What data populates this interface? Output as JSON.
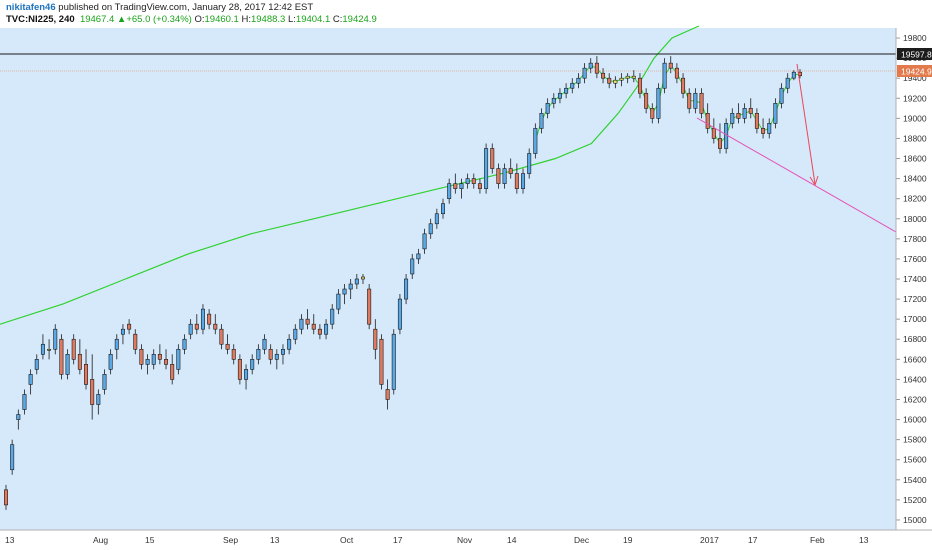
{
  "header": {
    "author": "nikitafen46",
    "published": "published on TradingView.com, January 28, 2017 12:42 EST",
    "symbol": "TVC:NI225, 240",
    "last": "19467.4",
    "change_arrow": "▲",
    "change": "+65.0 (+0.34%)",
    "open_label": "O:",
    "open": "19460.1",
    "high_label": "H:",
    "high": "19488.3",
    "low_label": "L:",
    "low": "19404.1",
    "close_label": "C:",
    "close": "19424.9"
  },
  "colors": {
    "plot_bg": "#d6e9fb",
    "candle_up_fill": "#5aa9e6",
    "candle_down_fill": "#e07a5f",
    "candle_doji": "#f3e26a",
    "ma_line": "#2ed12e",
    "pink_line": "#e54fb4",
    "red_arrow": "#e8475a",
    "current_price_label_bg": "#e37a4b",
    "high_line_label_bg": "#1c1c1c"
  },
  "chart_data": {
    "type": "candlestick",
    "title": "",
    "xlabel": "",
    "ylabel": "",
    "ylim": [
      14900,
      19900
    ],
    "y_ticks": [
      15000,
      15200,
      15400,
      15600,
      15800,
      16000,
      16200,
      16400,
      16600,
      16800,
      17000,
      17200,
      17400,
      17600,
      17800,
      18000,
      18200,
      18400,
      18600,
      18800,
      19000,
      19200,
      19400,
      19600,
      19800
    ],
    "x_tick_labels": [
      "13",
      "Aug",
      "15",
      "Sep",
      "13",
      "Oct",
      "17",
      "Nov",
      "14",
      "Dec",
      "19",
      "2017",
      "17",
      "Feb",
      "13"
    ],
    "price_labels": {
      "horizontal_line": "19597.8",
      "current": "19424.9"
    },
    "levels": {
      "horizontal_line": 19597.8,
      "current": 19424.9
    },
    "candles": [
      [
        15300,
        15350,
        15100,
        15150
      ],
      [
        15500,
        15800,
        15450,
        15750
      ],
      [
        16000,
        16100,
        15900,
        16050
      ],
      [
        16100,
        16300,
        16050,
        16250
      ],
      [
        16350,
        16500,
        16250,
        16450
      ],
      [
        16500,
        16650,
        16450,
        16600
      ],
      [
        16650,
        16850,
        16600,
        16750
      ],
      [
        16700,
        16800,
        16600,
        16700
      ],
      [
        16700,
        16950,
        16650,
        16900
      ],
      [
        16800,
        16850,
        16400,
        16450
      ],
      [
        16450,
        16700,
        16400,
        16650
      ],
      [
        16800,
        16850,
        16550,
        16600
      ],
      [
        16650,
        16800,
        16450,
        16500
      ],
      [
        16550,
        16700,
        16300,
        16350
      ],
      [
        16400,
        16650,
        16000,
        16150
      ],
      [
        16150,
        16300,
        16050,
        16250
      ],
      [
        16300,
        16500,
        16250,
        16450
      ],
      [
        16500,
        16700,
        16450,
        16650
      ],
      [
        16700,
        16850,
        16600,
        16800
      ],
      [
        16850,
        16950,
        16750,
        16900
      ],
      [
        16950,
        17000,
        16850,
        16900
      ],
      [
        16850,
        16900,
        16650,
        16700
      ],
      [
        16700,
        16750,
        16500,
        16550
      ],
      [
        16550,
        16650,
        16450,
        16600
      ],
      [
        16550,
        16700,
        16500,
        16650
      ],
      [
        16650,
        16750,
        16550,
        16600
      ],
      [
        16600,
        16700,
        16500,
        16550
      ],
      [
        16550,
        16650,
        16350,
        16400
      ],
      [
        16500,
        16750,
        16450,
        16700
      ],
      [
        16700,
        16850,
        16650,
        16800
      ],
      [
        16850,
        17000,
        16800,
        16950
      ],
      [
        16950,
        17050,
        16850,
        16900
      ],
      [
        16900,
        17150,
        16850,
        17100
      ],
      [
        17050,
        17100,
        16900,
        16950
      ],
      [
        16950,
        17050,
        16850,
        16900
      ],
      [
        16900,
        16950,
        16700,
        16750
      ],
      [
        16750,
        16850,
        16650,
        16700
      ],
      [
        16700,
        16750,
        16550,
        16600
      ],
      [
        16600,
        16650,
        16350,
        16400
      ],
      [
        16400,
        16550,
        16300,
        16500
      ],
      [
        16500,
        16650,
        16450,
        16600
      ],
      [
        16600,
        16750,
        16550,
        16700
      ],
      [
        16700,
        16850,
        16650,
        16800
      ],
      [
        16700,
        16750,
        16550,
        16600
      ],
      [
        16600,
        16700,
        16500,
        16650
      ],
      [
        16650,
        16750,
        16550,
        16700
      ],
      [
        16700,
        16850,
        16650,
        16800
      ],
      [
        16800,
        16950,
        16750,
        16900
      ],
      [
        16900,
        17050,
        16850,
        17000
      ],
      [
        17000,
        17100,
        16900,
        16950
      ],
      [
        16950,
        17050,
        16850,
        16900
      ],
      [
        16900,
        16950,
        16800,
        16850
      ],
      [
        16850,
        17000,
        16800,
        16950
      ],
      [
        16950,
        17150,
        16900,
        17100
      ],
      [
        17100,
        17300,
        17050,
        17250
      ],
      [
        17250,
        17350,
        17150,
        17300
      ],
      [
        17300,
        17400,
        17200,
        17350
      ],
      [
        17350,
        17450,
        17300,
        17400
      ],
      [
        17400,
        17450,
        17350,
        17420
      ],
      [
        17300,
        17350,
        16900,
        16950
      ],
      [
        16900,
        17000,
        16600,
        16700
      ],
      [
        16800,
        16850,
        16300,
        16350
      ],
      [
        16300,
        16400,
        16100,
        16200
      ],
      [
        16300,
        16900,
        16250,
        16850
      ],
      [
        16900,
        17250,
        16850,
        17200
      ],
      [
        17200,
        17450,
        17150,
        17400
      ],
      [
        17450,
        17650,
        17400,
        17600
      ],
      [
        17600,
        17700,
        17550,
        17650
      ],
      [
        17700,
        17900,
        17650,
        17850
      ],
      [
        17850,
        18000,
        17800,
        17950
      ],
      [
        17950,
        18100,
        17900,
        18050
      ],
      [
        18050,
        18200,
        18000,
        18150
      ],
      [
        18200,
        18400,
        18150,
        18350
      ],
      [
        18350,
        18450,
        18250,
        18300
      ],
      [
        18300,
        18400,
        18200,
        18350
      ],
      [
        18350,
        18450,
        18300,
        18400
      ],
      [
        18400,
        18450,
        18300,
        18350
      ],
      [
        18350,
        18400,
        18250,
        18300
      ],
      [
        18300,
        18750,
        18250,
        18700
      ],
      [
        18700,
        18750,
        18450,
        18500
      ],
      [
        18500,
        18550,
        18300,
        18350
      ],
      [
        18350,
        18550,
        18300,
        18500
      ],
      [
        18500,
        18600,
        18400,
        18450
      ],
      [
        18450,
        18550,
        18250,
        18300
      ],
      [
        18300,
        18500,
        18250,
        18450
      ],
      [
        18450,
        18700,
        18400,
        18650
      ],
      [
        18650,
        18950,
        18600,
        18900
      ],
      [
        18900,
        19100,
        18850,
        19050
      ],
      [
        19050,
        19200,
        19000,
        19150
      ],
      [
        19150,
        19250,
        19100,
        19200
      ],
      [
        19200,
        19300,
        19150,
        19250
      ],
      [
        19250,
        19350,
        19200,
        19300
      ],
      [
        19300,
        19400,
        19250,
        19350
      ],
      [
        19350,
        19450,
        19300,
        19400
      ],
      [
        19400,
        19550,
        19350,
        19500
      ],
      [
        19500,
        19600,
        19450,
        19550
      ],
      [
        19550,
        19620,
        19400,
        19450
      ],
      [
        19450,
        19500,
        19350,
        19400
      ],
      [
        19400,
        19450,
        19300,
        19350
      ],
      [
        19350,
        19420,
        19300,
        19380
      ],
      [
        19380,
        19450,
        19320,
        19400
      ],
      [
        19400,
        19450,
        19350,
        19420
      ],
      [
        19420,
        19480,
        19360,
        19400
      ],
      [
        19400,
        19450,
        19200,
        19250
      ],
      [
        19250,
        19300,
        19050,
        19100
      ],
      [
        19100,
        19150,
        18950,
        19000
      ],
      [
        19000,
        19350,
        18950,
        19300
      ],
      [
        19300,
        19600,
        19250,
        19550
      ],
      [
        19550,
        19620,
        19450,
        19500
      ],
      [
        19500,
        19550,
        19350,
        19400
      ],
      [
        19400,
        19450,
        19200,
        19250
      ],
      [
        19250,
        19300,
        19050,
        19100
      ],
      [
        19100,
        19300,
        19050,
        19250
      ],
      [
        19250,
        19300,
        19000,
        19050
      ],
      [
        19050,
        19150,
        18850,
        18900
      ],
      [
        18900,
        19000,
        18750,
        18800
      ],
      [
        18800,
        18950,
        18650,
        18700
      ],
      [
        18700,
        19000,
        18650,
        18950
      ],
      [
        18950,
        19100,
        18900,
        19050
      ],
      [
        19050,
        19150,
        18950,
        19000
      ],
      [
        19000,
        19150,
        18950,
        19100
      ],
      [
        19100,
        19200,
        19000,
        19050
      ],
      [
        19050,
        19100,
        18850,
        18900
      ],
      [
        18900,
        19000,
        18800,
        18850
      ],
      [
        18850,
        19000,
        18800,
        18950
      ],
      [
        18950,
        19200,
        18900,
        19150
      ],
      [
        19150,
        19350,
        19100,
        19300
      ],
      [
        19300,
        19450,
        19250,
        19400
      ],
      [
        19400,
        19480,
        19380,
        19460
      ],
      [
        19460,
        19490,
        19400,
        19425
      ]
    ],
    "moving_average": [
      [
        0,
        16950
      ],
      [
        0.07,
        17150
      ],
      [
        0.14,
        17400
      ],
      [
        0.21,
        17650
      ],
      [
        0.28,
        17850
      ],
      [
        0.35,
        18000
      ],
      [
        0.42,
        18150
      ],
      [
        0.49,
        18300
      ],
      [
        0.56,
        18450
      ],
      [
        0.62,
        18600
      ],
      [
        0.66,
        18750
      ],
      [
        0.69,
        19050
      ],
      [
        0.71,
        19300
      ],
      [
        0.73,
        19600
      ],
      [
        0.75,
        19800
      ],
      [
        0.78,
        19920
      ]
    ]
  }
}
